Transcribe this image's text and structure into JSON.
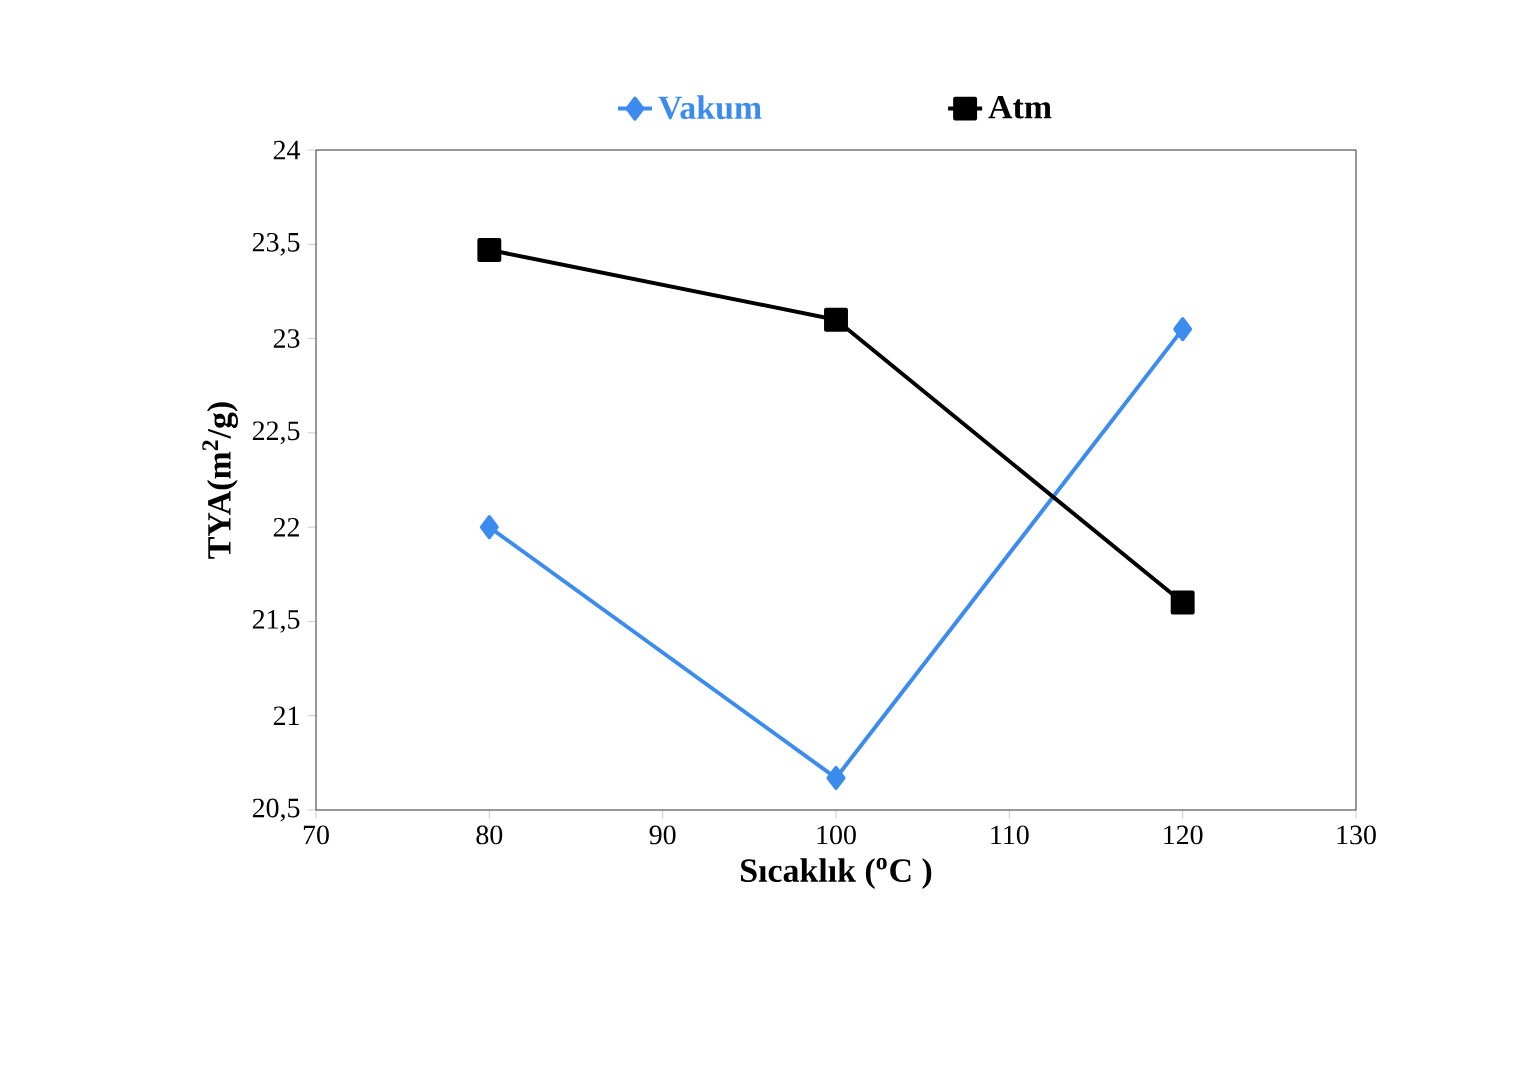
{
  "chart_data": {
    "type": "line",
    "xlabel": "Sıcaklık ($^{o}$C )",
    "ylabel": "TYA(m$^{2}$/g)",
    "x": [
      80,
      100,
      120
    ],
    "series": [
      {
        "name": "Vakum",
        "color": "#3c8cf0",
        "marker": "diamond",
        "values": [
          22.0,
          20.67,
          23.05
        ]
      },
      {
        "name": "Atm",
        "color": "#000000",
        "marker": "square",
        "values": [
          23.47,
          23.1,
          21.6
        ]
      }
    ],
    "xlim": [
      70,
      130
    ],
    "xticks": [
      70,
      80,
      90,
      100,
      110,
      120,
      130
    ],
    "ylim": [
      20.5,
      24
    ],
    "yticks": [
      {
        "value": 20.5,
        "label": "20,5"
      },
      21,
      {
        "value": 21.5,
        "label": "21,5"
      },
      22,
      {
        "value": 22.5,
        "label": "22,5"
      },
      23,
      {
        "value": 23.5,
        "label": "23,5"
      },
      24
    ],
    "legend": "top",
    "grid": false
  }
}
